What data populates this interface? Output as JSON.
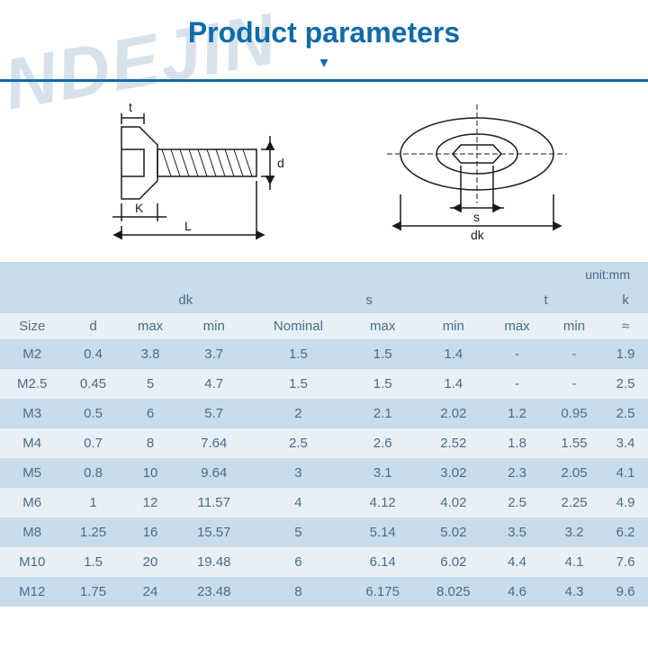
{
  "title": "Product parameters",
  "unit_label": "unit:mm",
  "watermark_text": "NINDEJIN",
  "colors": {
    "title_color": "#0e6ba8",
    "title_border": "#0e6ba8",
    "chevron_color": "#0e6ba8",
    "watermark_color": "rgba(140,170,200,0.35)",
    "table_header_bg": "#c9dceb",
    "table_row_alt_bg": "#e8f0f7",
    "table_row_bg": "#ffffff",
    "table_text": "#4a6b8a",
    "unit_bg": "#c9dceb",
    "diagram_stroke": "#1a1a1a"
  },
  "diagram_labels": {
    "t": "t",
    "d": "d",
    "k": "K",
    "L": "L",
    "s": "s",
    "dk": "dk"
  },
  "table": {
    "group_headers": [
      "",
      "",
      "dk",
      "s",
      "t",
      "k"
    ],
    "group_spans": [
      1,
      1,
      2,
      3,
      2,
      1
    ],
    "sub_headers": [
      "Size",
      "d",
      "max",
      "min",
      "Nominal",
      "max",
      "min",
      "max",
      "min",
      "≈"
    ],
    "rows": [
      [
        "M2",
        "0.4",
        "3.8",
        "3.7",
        "1.5",
        "1.5",
        "1.4",
        "-",
        "-",
        "1.9"
      ],
      [
        "M2.5",
        "0.45",
        "5",
        "4.7",
        "1.5",
        "1.5",
        "1.4",
        "-",
        "-",
        "2.5"
      ],
      [
        "M3",
        "0.5",
        "6",
        "5.7",
        "2",
        "2.1",
        "2.02",
        "1.2",
        "0.95",
        "2.5"
      ],
      [
        "M4",
        "0.7",
        "8",
        "7.64",
        "2.5",
        "2.6",
        "2.52",
        "1.8",
        "1.55",
        "3.4"
      ],
      [
        "M5",
        "0.8",
        "10",
        "9.64",
        "3",
        "3.1",
        "3.02",
        "2.3",
        "2.05",
        "4.1"
      ],
      [
        "M6",
        "1",
        "12",
        "11.57",
        "4",
        "4.12",
        "4.02",
        "2.5",
        "2.25",
        "4.9"
      ],
      [
        "M8",
        "1.25",
        "16",
        "15.57",
        "5",
        "5.14",
        "5.02",
        "3.5",
        "3.2",
        "6.2"
      ],
      [
        "M10",
        "1.5",
        "20",
        "19.48",
        "6",
        "6.14",
        "6.02",
        "4.4",
        "4.1",
        "7.6"
      ],
      [
        "M12",
        "1.75",
        "24",
        "23.48",
        "8",
        "6.175",
        "8.025",
        "4.6",
        "4.3",
        "9.6"
      ]
    ]
  }
}
